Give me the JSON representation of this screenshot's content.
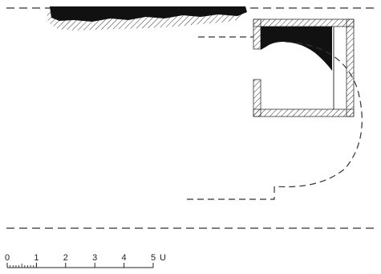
{
  "scale_bar": {
    "tick_labels": [
      "0",
      "1",
      "2",
      "3",
      "4",
      "5"
    ],
    "unit": "U"
  },
  "colors": {
    "ink": "#1a1a1a",
    "background": "#ffffff"
  }
}
